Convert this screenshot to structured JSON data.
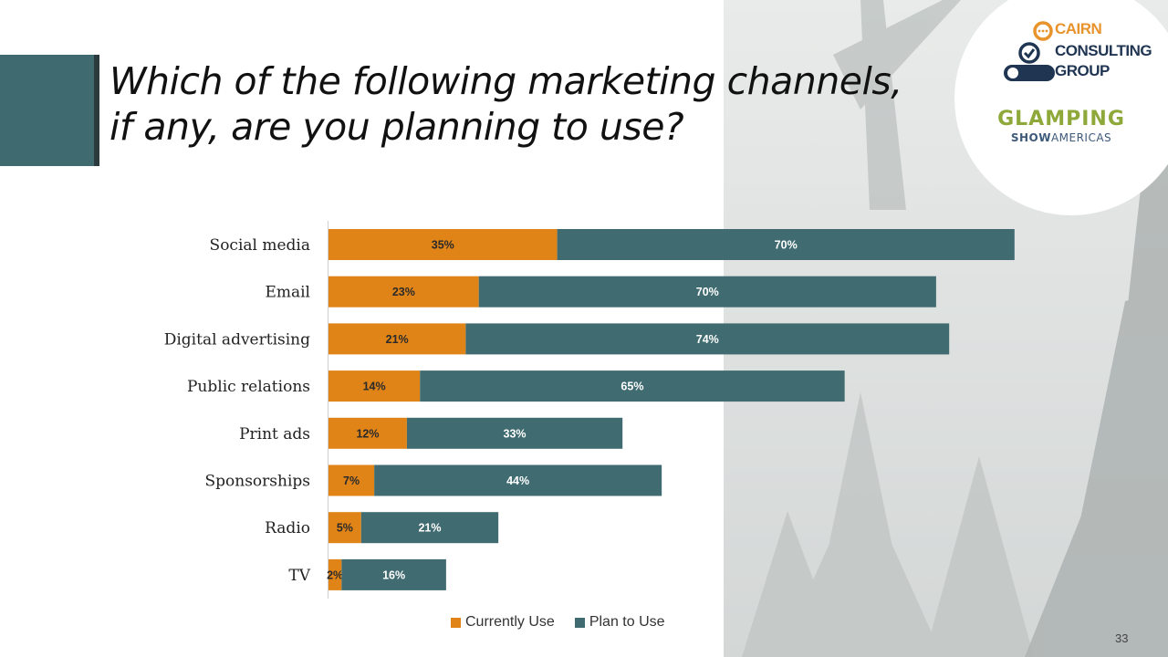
{
  "title": {
    "line1": "Which of the following marketing channels,",
    "line2": "if any, are you planning to use?"
  },
  "logos": {
    "cairn": {
      "line1": "CAIRN",
      "line2": "CONSULTING",
      "line3": "GROUP"
    },
    "glamping": {
      "line1": "GLAMPING",
      "line2a": "SHOW",
      "line2b": "AMERICAS"
    }
  },
  "page_number": "33",
  "colors": {
    "current": "#e08418",
    "plan": "#406c71",
    "accent_dark": "#2b3b3d",
    "cairn_orange": "#e8932b",
    "cairn_navy": "#1f3552"
  },
  "chart_data": {
    "type": "bar",
    "orientation": "horizontal",
    "stacked": true,
    "categories": [
      "Social media",
      "Email",
      "Digital advertising",
      "Public relations",
      "Print ads",
      "Sponsorships",
      "Radio",
      "TV"
    ],
    "series": [
      {
        "name": "Currently Use",
        "values": [
          35,
          23,
          21,
          14,
          12,
          7,
          5,
          2
        ],
        "labels": [
          "35%",
          "23%",
          "21%",
          "14%",
          "12%",
          "7%",
          "5%",
          "2%"
        ]
      },
      {
        "name": "Plan to Use",
        "values": [
          70,
          70,
          74,
          65,
          33,
          44,
          21,
          16
        ],
        "labels": [
          "70%",
          "70%",
          "74%",
          "65%",
          "33%",
          "44%",
          "21%",
          "16%"
        ]
      }
    ],
    "xlim": [
      0,
      100
    ],
    "grid": false,
    "legend": "bottom"
  }
}
